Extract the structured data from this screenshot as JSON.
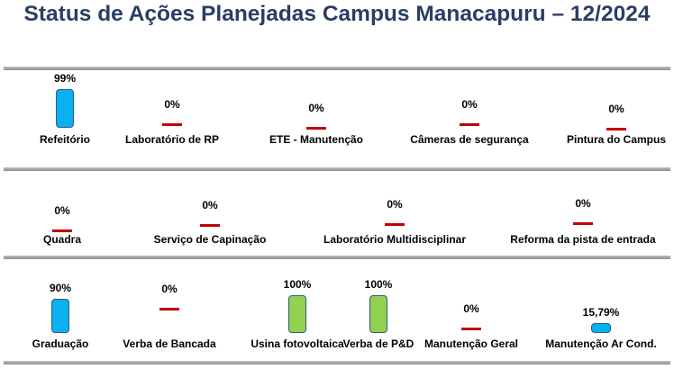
{
  "title": "Status de Ações Planejadas Campus Manacapuru – 12/2024",
  "colors": {
    "title": "#2b3d63",
    "blue": "#0ab0f0",
    "green": "#92d050",
    "zero": "#c00000"
  },
  "chart_data": [
    {
      "type": "bar",
      "categories": [
        "Refeitório",
        "Laboratório de RP",
        "ETE - Manutenção",
        "Câmeras de segurança",
        "Pintura do Campus"
      ],
      "values": [
        99,
        0,
        0,
        0,
        0
      ],
      "labels": [
        "99%",
        "0%",
        "0%",
        "0%",
        "0%"
      ],
      "colors": [
        "#0ab0f0",
        "#0ab0f0",
        "#0ab0f0",
        "#0ab0f0",
        "#0ab0f0"
      ]
    },
    {
      "type": "bar",
      "categories": [
        "Quadra",
        "Serviço de Capinação",
        "Laboratório Multidisciplinar",
        "Reforma da pista de entrada"
      ],
      "values": [
        0,
        0,
        0,
        0
      ],
      "labels": [
        "0%",
        "0%",
        "0%",
        "0%"
      ],
      "colors": [
        "#0ab0f0",
        "#0ab0f0",
        "#0ab0f0",
        "#0ab0f0"
      ]
    },
    {
      "type": "bar",
      "categories": [
        "Graduação",
        "Verba de Bancada",
        "Usina fotovoltaica",
        "Verba de P&D",
        "Manutenção Geral",
        "Manutenção Ar Cond."
      ],
      "values": [
        90,
        0,
        100,
        100,
        0,
        15.79
      ],
      "labels": [
        "90%",
        "0%",
        "100%",
        "100%",
        "0%",
        "15,79%"
      ],
      "colors": [
        "#0ab0f0",
        "#0ab0f0",
        "#92d050",
        "#92d050",
        "#0ab0f0",
        "#0ab0f0"
      ]
    }
  ]
}
